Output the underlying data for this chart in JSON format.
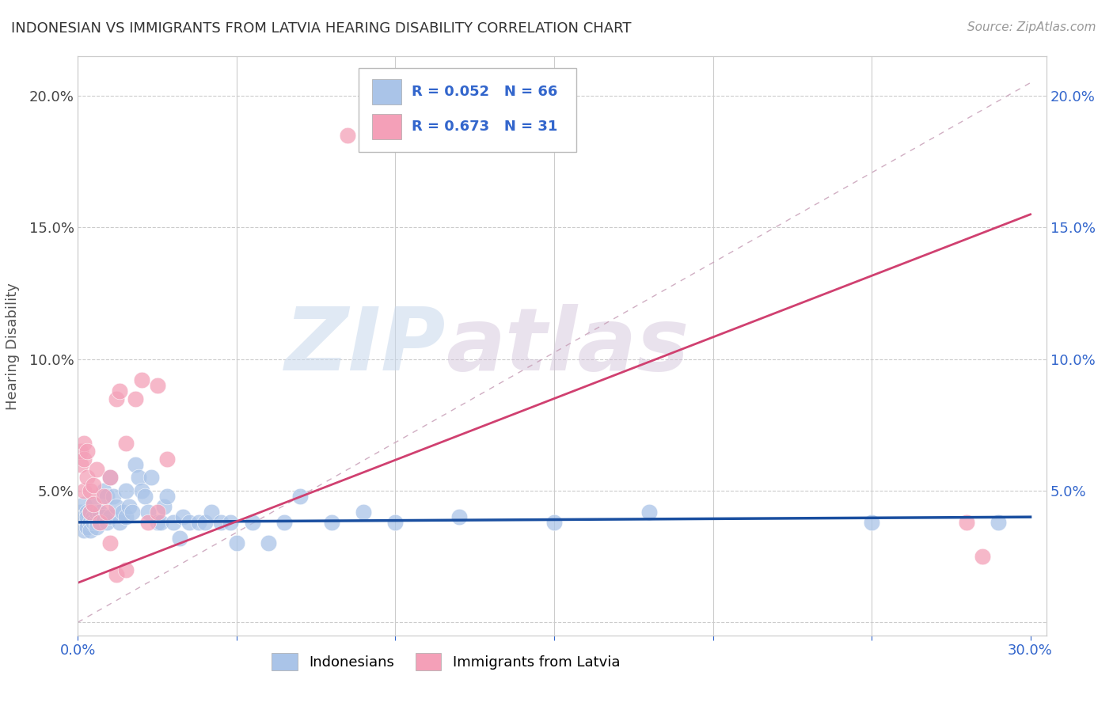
{
  "title": "INDONESIAN VS IMMIGRANTS FROM LATVIA HEARING DISABILITY CORRELATION CHART",
  "source": "Source: ZipAtlas.com",
  "ylabel": "Hearing Disability",
  "xlim": [
    0.0,
    0.305
  ],
  "ylim": [
    -0.005,
    0.215
  ],
  "xticks": [
    0.0,
    0.05,
    0.1,
    0.15,
    0.2,
    0.25,
    0.3
  ],
  "xtick_labels": [
    "0.0%",
    "",
    "",
    "",
    "",
    "",
    "30.0%"
  ],
  "yticks": [
    0.0,
    0.05,
    0.1,
    0.15,
    0.2
  ],
  "ytick_labels_left": [
    "",
    "5.0%",
    "10.0%",
    "15.0%",
    "20.0%"
  ],
  "ytick_labels_right": [
    "",
    "5.0%",
    "10.0%",
    "15.0%",
    "20.0%"
  ],
  "background_color": "#ffffff",
  "grid_color": "#cccccc",
  "indonesian_color": "#aac4e8",
  "latvian_color": "#f4a0b8",
  "line_indonesian_color": "#1a4fa0",
  "line_latvian_color": "#d04070",
  "diag_color": "#c8a0b8",
  "r_indonesian": 0.052,
  "n_indonesian": 66,
  "r_latvian": 0.673,
  "n_latvian": 31,
  "indonesian_x": [
    0.001,
    0.001,
    0.002,
    0.002,
    0.002,
    0.003,
    0.003,
    0.003,
    0.003,
    0.004,
    0.004,
    0.004,
    0.005,
    0.005,
    0.005,
    0.006,
    0.006,
    0.006,
    0.007,
    0.007,
    0.008,
    0.008,
    0.009,
    0.009,
    0.01,
    0.01,
    0.011,
    0.012,
    0.013,
    0.014,
    0.015,
    0.015,
    0.016,
    0.017,
    0.018,
    0.019,
    0.02,
    0.021,
    0.022,
    0.023,
    0.025,
    0.026,
    0.027,
    0.028,
    0.03,
    0.032,
    0.033,
    0.035,
    0.038,
    0.04,
    0.042,
    0.045,
    0.048,
    0.05,
    0.055,
    0.06,
    0.065,
    0.07,
    0.08,
    0.09,
    0.1,
    0.12,
    0.15,
    0.18,
    0.25,
    0.29
  ],
  "indonesian_y": [
    0.038,
    0.042,
    0.035,
    0.04,
    0.045,
    0.038,
    0.042,
    0.036,
    0.04,
    0.038,
    0.035,
    0.042,
    0.04,
    0.038,
    0.045,
    0.038,
    0.042,
    0.036,
    0.042,
    0.038,
    0.05,
    0.04,
    0.048,
    0.038,
    0.055,
    0.04,
    0.048,
    0.044,
    0.038,
    0.042,
    0.04,
    0.05,
    0.044,
    0.042,
    0.06,
    0.055,
    0.05,
    0.048,
    0.042,
    0.055,
    0.038,
    0.038,
    0.044,
    0.048,
    0.038,
    0.032,
    0.04,
    0.038,
    0.038,
    0.038,
    0.042,
    0.038,
    0.038,
    0.03,
    0.038,
    0.03,
    0.038,
    0.048,
    0.038,
    0.042,
    0.038,
    0.04,
    0.038,
    0.042,
    0.038,
    0.038
  ],
  "latvian_x": [
    0.001,
    0.001,
    0.002,
    0.002,
    0.002,
    0.003,
    0.003,
    0.004,
    0.004,
    0.005,
    0.005,
    0.006,
    0.007,
    0.008,
    0.009,
    0.01,
    0.012,
    0.013,
    0.015,
    0.018,
    0.02,
    0.022,
    0.025,
    0.028,
    0.085,
    0.01,
    0.012,
    0.015,
    0.025,
    0.28,
    0.285
  ],
  "latvian_y": [
    0.06,
    0.065,
    0.05,
    0.062,
    0.068,
    0.055,
    0.065,
    0.042,
    0.05,
    0.045,
    0.052,
    0.058,
    0.038,
    0.048,
    0.042,
    0.055,
    0.085,
    0.088,
    0.068,
    0.085,
    0.092,
    0.038,
    0.042,
    0.062,
    0.185,
    0.03,
    0.018,
    0.02,
    0.09,
    0.038,
    0.025
  ],
  "latvian_line_x": [
    0.0,
    0.3
  ],
  "latvian_line_y": [
    0.015,
    0.155
  ],
  "indonesian_line_x": [
    0.0,
    0.3
  ],
  "indonesian_line_y": [
    0.038,
    0.04
  ],
  "diag_line_x": [
    0.0,
    0.3
  ],
  "diag_line_y": [
    0.0,
    0.205
  ],
  "watermark_zip": "ZIP",
  "watermark_atlas": "atlas",
  "legend_r_indo": "R = 0.052",
  "legend_n_indo": "N = 66",
  "legend_r_latv": "R = 0.673",
  "legend_n_latv": "N = 31"
}
